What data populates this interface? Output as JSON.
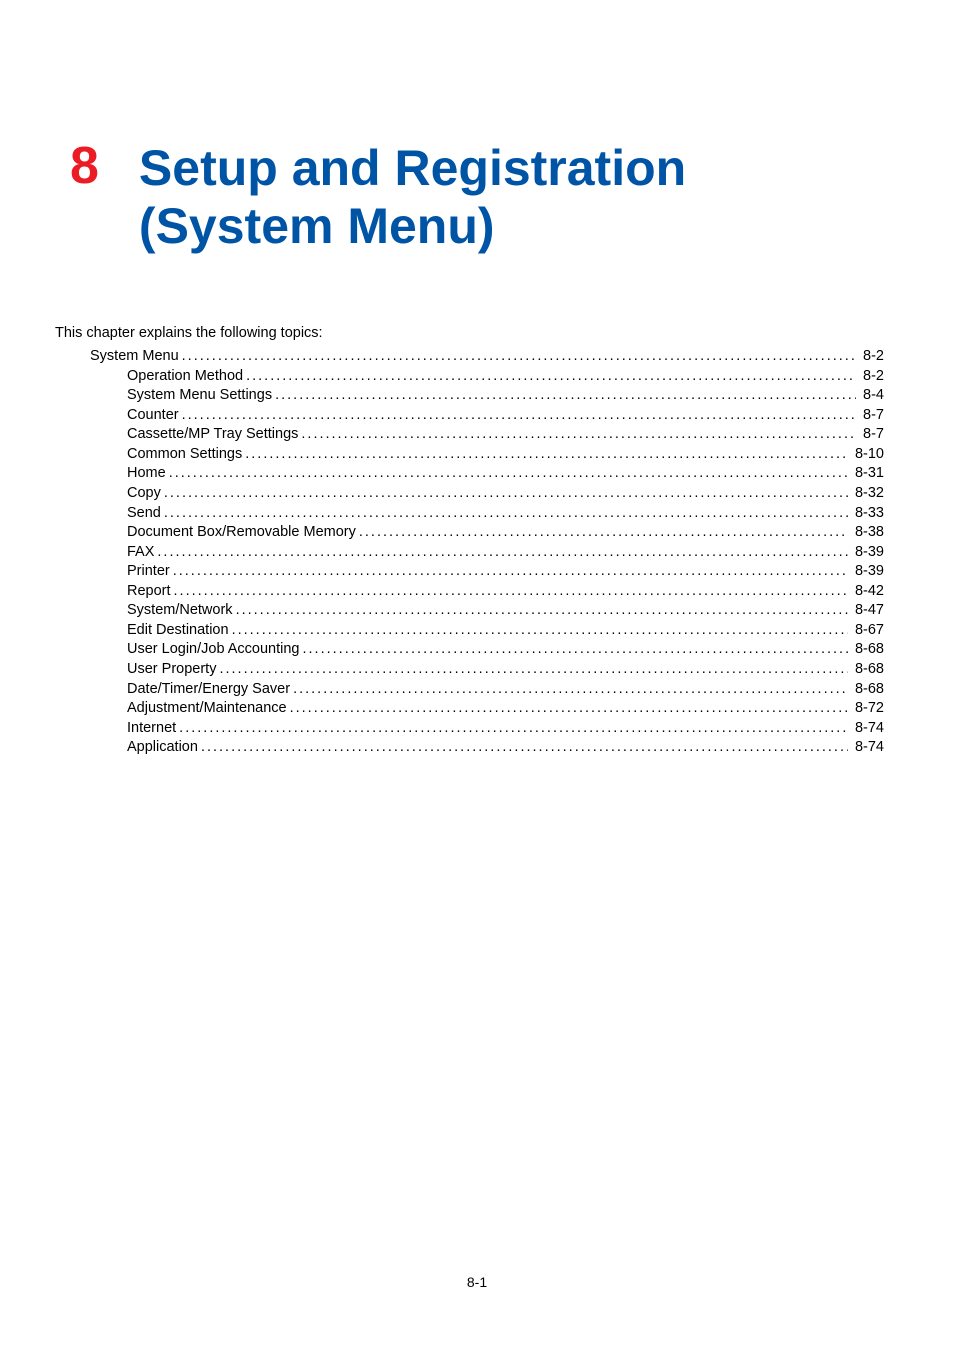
{
  "chapter": {
    "number": "8",
    "title_line1": "Setup and Registration",
    "title_line2": "(System Menu)",
    "number_color": "#ec1c24",
    "title_color": "#0054a6",
    "title_fontsize": 50,
    "number_fontsize": 52
  },
  "intro": "This chapter explains the following topics:",
  "toc": {
    "entries": [
      {
        "label": "System Menu",
        "page": "8-2",
        "level": 1
      },
      {
        "label": "Operation Method",
        "page": "8-2",
        "level": 2
      },
      {
        "label": "System Menu Settings",
        "page": "8-4",
        "level": 2
      },
      {
        "label": "Counter",
        "page": "8-7",
        "level": 2
      },
      {
        "label": "Cassette/MP Tray Settings",
        "page": "8-7",
        "level": 2
      },
      {
        "label": "Common Settings",
        "page": "8-10",
        "level": 2
      },
      {
        "label": "Home",
        "page": "8-31",
        "level": 2
      },
      {
        "label": "Copy",
        "page": "8-32",
        "level": 2
      },
      {
        "label": "Send",
        "page": "8-33",
        "level": 2
      },
      {
        "label": "Document Box/Removable Memory",
        "page": "8-38",
        "level": 2
      },
      {
        "label": "FAX",
        "page": "8-39",
        "level": 2
      },
      {
        "label": "Printer",
        "page": "8-39",
        "level": 2
      },
      {
        "label": "Report",
        "page": "8-42",
        "level": 2
      },
      {
        "label": "System/Network",
        "page": "8-47",
        "level": 2
      },
      {
        "label": "Edit Destination",
        "page": "8-67",
        "level": 2
      },
      {
        "label": "User Login/Job Accounting",
        "page": "8-68",
        "level": 2
      },
      {
        "label": "User Property",
        "page": "8-68",
        "level": 2
      },
      {
        "label": "Date/Timer/Energy Saver",
        "page": "8-68",
        "level": 2
      },
      {
        "label": "Adjustment/Maintenance",
        "page": "8-72",
        "level": 2
      },
      {
        "label": "Internet",
        "page": "8-74",
        "level": 2
      },
      {
        "label": "Application",
        "page": "8-74",
        "level": 2
      }
    ],
    "text_color": "#000000",
    "fontsize": 14.5
  },
  "page_number": "8-1",
  "background_color": "#ffffff"
}
